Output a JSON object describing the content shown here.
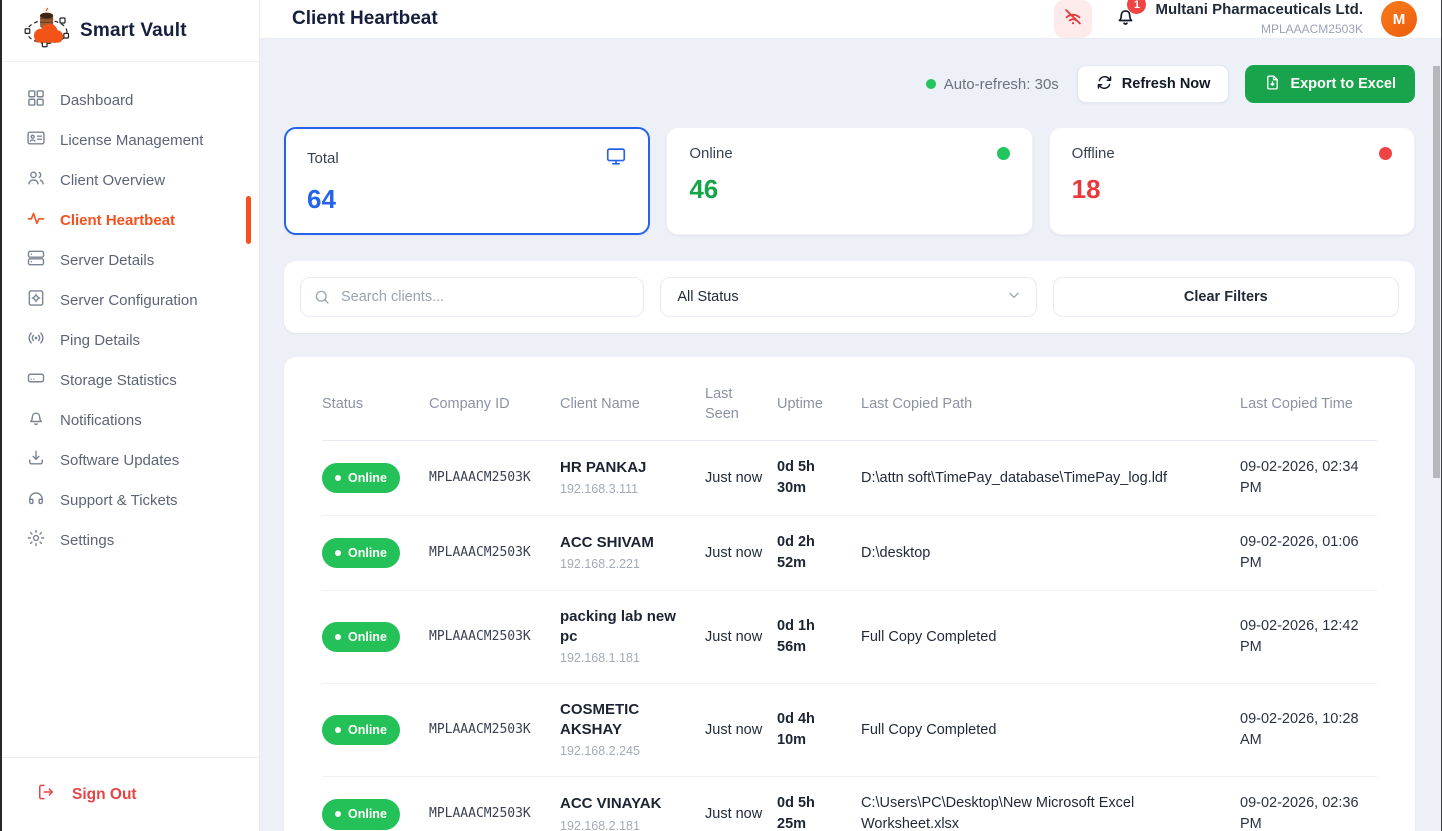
{
  "brand": {
    "name": "Smart Vault"
  },
  "sidebar": {
    "items": [
      {
        "label": "Dashboard",
        "icon": "dashboard-icon",
        "active": false
      },
      {
        "label": "License Management",
        "icon": "license-icon",
        "active": false
      },
      {
        "label": "Client Overview",
        "icon": "users-icon",
        "active": false
      },
      {
        "label": "Client Heartbeat",
        "icon": "heartbeat-icon",
        "active": true
      },
      {
        "label": "Server Details",
        "icon": "server-icon",
        "active": false
      },
      {
        "label": "Server Configuration",
        "icon": "server-config-icon",
        "active": false
      },
      {
        "label": "Ping Details",
        "icon": "ping-icon",
        "active": false
      },
      {
        "label": "Storage Statistics",
        "icon": "storage-icon",
        "active": false
      },
      {
        "label": "Notifications",
        "icon": "bell-icon",
        "active": false
      },
      {
        "label": "Software Updates",
        "icon": "download-icon",
        "active": false
      },
      {
        "label": "Support & Tickets",
        "icon": "headset-icon",
        "active": false
      },
      {
        "label": "Settings",
        "icon": "gear-icon",
        "active": false
      }
    ],
    "sign_out_label": "Sign Out"
  },
  "header": {
    "page_title": "Client Heartbeat",
    "notification_count": "1",
    "company_name": "Multani Pharmaceuticals Ltd.",
    "company_id": "MPLAAACM2503K",
    "avatar_initial": "M"
  },
  "toolbar": {
    "auto_refresh_label": "Auto-refresh: 30s",
    "refresh_button_label": "Refresh Now",
    "export_button_label": "Export to Excel"
  },
  "stats": {
    "total": {
      "label": "Total",
      "value": "64"
    },
    "online": {
      "label": "Online",
      "value": "46"
    },
    "offline": {
      "label": "Offline",
      "value": "18"
    }
  },
  "filters": {
    "search_placeholder": "Search clients...",
    "status_selected": "All Status",
    "clear_button_label": "Clear Filters"
  },
  "table": {
    "columns": [
      "Status",
      "Company ID",
      "Client Name",
      "Last Seen",
      "Uptime",
      "Last Copied Path",
      "Last Copied Time"
    ],
    "rows": [
      {
        "status": "Online",
        "company_id": "MPLAAACM2503K",
        "client_name": "HR PANKAJ",
        "ip": "192.168.3.111",
        "last_seen": "Just now",
        "uptime": "0d 5h 30m",
        "last_copied_path": "D:\\attn soft\\TimePay_database\\TimePay_log.ldf",
        "last_copied_time": "09-02-2026, 02:34 PM"
      },
      {
        "status": "Online",
        "company_id": "MPLAAACM2503K",
        "client_name": "ACC SHIVAM",
        "ip": "192.168.2.221",
        "last_seen": "Just now",
        "uptime": "0d 2h 52m",
        "last_copied_path": "D:\\desktop",
        "last_copied_time": "09-02-2026, 01:06 PM"
      },
      {
        "status": "Online",
        "company_id": "MPLAAACM2503K",
        "client_name": "packing lab new pc",
        "ip": "192.168.1.181",
        "last_seen": "Just now",
        "uptime": "0d 1h 56m",
        "last_copied_path": "Full Copy Completed",
        "last_copied_time": "09-02-2026, 12:42 PM"
      },
      {
        "status": "Online",
        "company_id": "MPLAAACM2503K",
        "client_name": "COSMETIC AKSHAY",
        "ip": "192.168.2.245",
        "last_seen": "Just now",
        "uptime": "0d 4h 10m",
        "last_copied_path": "Full Copy Completed",
        "last_copied_time": "09-02-2026, 10:28 AM"
      },
      {
        "status": "Online",
        "company_id": "MPLAAACM2503K",
        "client_name": "ACC VINAYAK",
        "ip": "192.168.2.181",
        "last_seen": "Just now",
        "uptime": "0d 5h 25m",
        "last_copied_path": "C:\\Users\\PC\\Desktop\\New Microsoft Excel Worksheet.xlsx",
        "last_copied_time": "09-02-2026, 02:36 PM"
      }
    ]
  },
  "colors": {
    "accent_orange": "#f4511e",
    "accent_blue": "#2563eb",
    "online_green": "#24c158",
    "online_value_green": "#16a34a",
    "offline_red": "#e8393d",
    "export_green": "#1aa34d",
    "signout_red": "#e64545",
    "title_navy": "#16203e",
    "background": "#edf0f6"
  }
}
